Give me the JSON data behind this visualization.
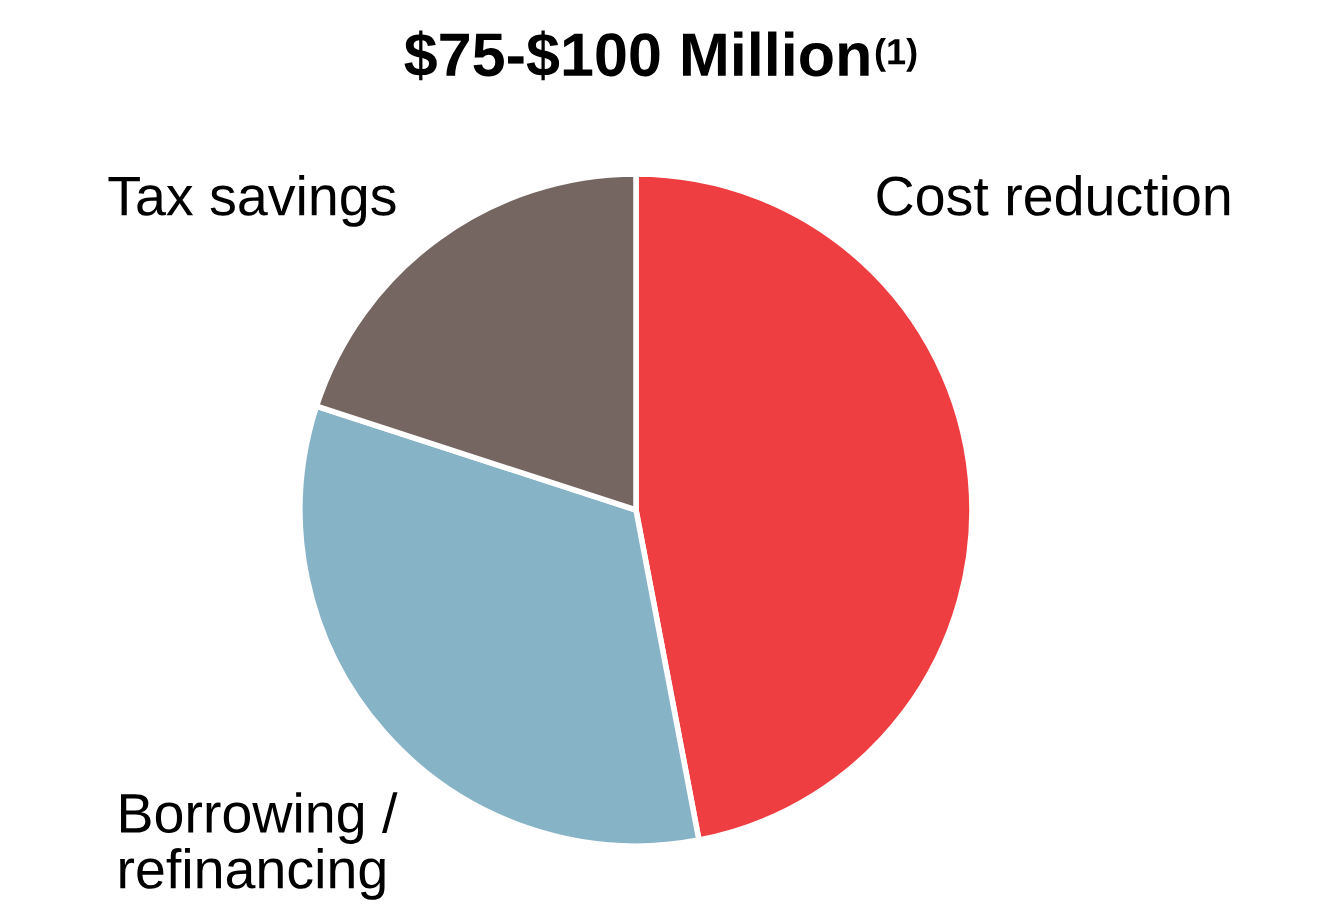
{
  "chart_data": {
    "type": "pie",
    "title": "$75-$100 Million$^{(1)}$",
    "categories": [
      "Cost reduction",
      "Borrowing /\nrefinancing",
      "Tax savings"
    ],
    "values": [
      47,
      33,
      20
    ],
    "colors": [
      "#ef3e42",
      "#87b3c6",
      "#766662"
    ]
  }
}
